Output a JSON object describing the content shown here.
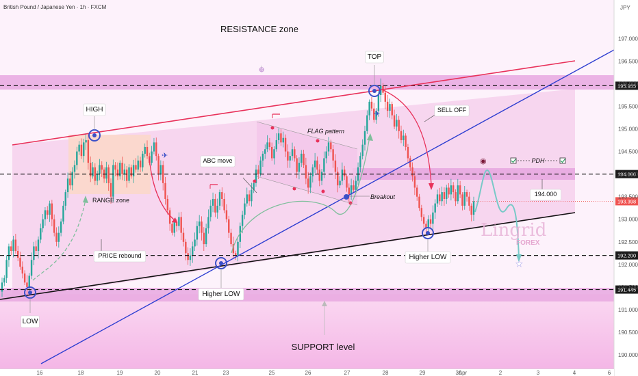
{
  "chart_data": {
    "type": "candlestick",
    "title": "British Pound / Japanese Yen · 1h · FXCM",
    "currency": "JPY",
    "ylim": [
      189.85,
      197.7
    ],
    "y_ticks": [
      "197.000",
      "196.500",
      "196.000",
      "195.500",
      "195.000",
      "194.500",
      "194.000",
      "193.500",
      "193.000",
      "192.500",
      "192.000",
      "191.500",
      "191.000",
      "190.500",
      "190.000"
    ],
    "x_ticks": [
      "16",
      "18",
      "19",
      "20",
      "21",
      "23",
      "25",
      "26",
      "27",
      "28",
      "29",
      "30",
      "Apr",
      "2",
      "3",
      "4",
      "6"
    ],
    "price_levels": [
      {
        "value": 195.955,
        "label": "195.955",
        "style": "dashed"
      },
      {
        "value": 194.0,
        "label": "194.000",
        "style": "dashed"
      },
      {
        "value": 193.398,
        "label": "193.398",
        "style": "current"
      },
      {
        "value": 192.2,
        "label": "192.200",
        "style": "dashed"
      },
      {
        "value": 191.445,
        "label": "191.445",
        "style": "dashed"
      }
    ],
    "zones": [
      {
        "name": "resistance",
        "from": 195.8,
        "to": 196.08
      },
      {
        "name": "pdh",
        "from": 193.86,
        "to": 194.12
      },
      {
        "name": "support",
        "from": 191.28,
        "to": 191.6
      }
    ],
    "candle_closes": [
      191.6,
      191.7,
      192.1,
      192.4,
      192.3,
      192.55,
      192.3,
      192.15,
      191.95,
      191.8,
      191.6,
      191.5,
      191.75,
      192.1,
      192.4,
      192.3,
      192.55,
      192.8,
      193.0,
      193.2,
      193.1,
      193.35,
      193.0,
      192.7,
      192.5,
      192.7,
      192.95,
      193.3,
      193.6,
      193.9,
      193.75,
      194.05,
      194.2,
      194.5,
      194.65,
      194.4,
      194.7,
      194.75,
      194.25,
      193.95,
      194.15,
      193.85,
      194.0,
      194.2,
      194.1,
      193.9,
      194.15,
      193.8,
      193.5,
      194.2,
      194.1,
      193.95,
      194.25,
      194.0,
      194.1,
      193.85,
      194.15,
      193.95,
      194.2,
      194.1,
      194.3,
      194.15,
      194.45,
      194.6,
      194.4,
      194.25,
      194.5,
      194.7,
      194.4,
      194.0,
      194.2,
      193.8,
      193.45,
      193.2,
      192.9,
      192.7,
      192.95,
      192.85,
      193.05,
      192.7,
      192.5,
      192.25,
      192.1,
      192.2,
      192.4,
      192.55,
      192.85,
      192.95,
      192.7,
      192.45,
      192.8,
      193.05,
      193.3,
      193.45,
      193.15,
      193.3,
      193.6,
      193.45,
      193.2,
      193.0,
      192.7,
      192.45,
      192.25,
      192.2,
      192.5,
      192.85,
      193.1,
      193.35,
      193.55,
      193.4,
      193.65,
      193.8,
      194.1,
      194.0,
      194.3,
      194.45,
      194.55,
      194.7,
      194.6,
      194.35,
      194.55,
      194.75,
      194.9,
      194.7,
      194.8,
      194.5,
      194.3,
      194.4,
      194.55,
      194.35,
      194.05,
      194.25,
      194.45,
      194.2,
      193.9,
      193.7,
      193.95,
      194.15,
      194.3,
      194.1,
      193.85,
      194.05,
      194.35,
      194.5,
      194.7,
      194.55,
      194.3,
      194.05,
      193.75,
      193.85,
      194.1,
      193.95,
      193.7,
      193.55,
      193.75,
      193.65,
      193.85,
      194.15,
      194.4,
      194.65,
      194.95,
      195.3,
      195.6,
      195.45,
      195.2,
      195.4,
      195.75,
      195.95,
      195.8,
      195.6,
      195.4,
      195.55,
      195.3,
      195.05,
      195.2,
      194.95,
      194.75,
      194.85,
      194.6,
      194.35,
      194.15,
      193.95,
      193.7,
      193.5,
      193.25,
      193.05,
      192.9,
      192.8,
      193.0,
      192.9,
      193.15,
      193.35,
      193.55,
      193.4,
      193.6,
      193.45,
      193.7,
      193.55,
      193.75,
      193.6,
      193.4,
      193.75,
      193.55,
      193.3,
      193.6,
      193.5,
      193.3,
      193.1,
      193.398
    ],
    "annotations": [
      "RESISTANCE zone",
      "SUPPORT level",
      "TOP",
      "HIGH",
      "LOW",
      "RANGE zone",
      "PRICE rebound",
      "ABC move",
      "FLAG pattern",
      "Breakout",
      "SELL OFF",
      "Higher LOW",
      "Higher LOW",
      "PDH",
      "194.000"
    ],
    "watermark": [
      "Lingrid",
      "FOREX"
    ],
    "colors": {
      "up": "#26a69a",
      "down": "#ef5350",
      "channel": "#f7d6ef",
      "zone": "#e7a8e0",
      "support_fill": "#f6c6ea",
      "resistance_line": "#e8315a",
      "trend_line": "#2f3fd1",
      "marker": "#3a50c8"
    }
  }
}
